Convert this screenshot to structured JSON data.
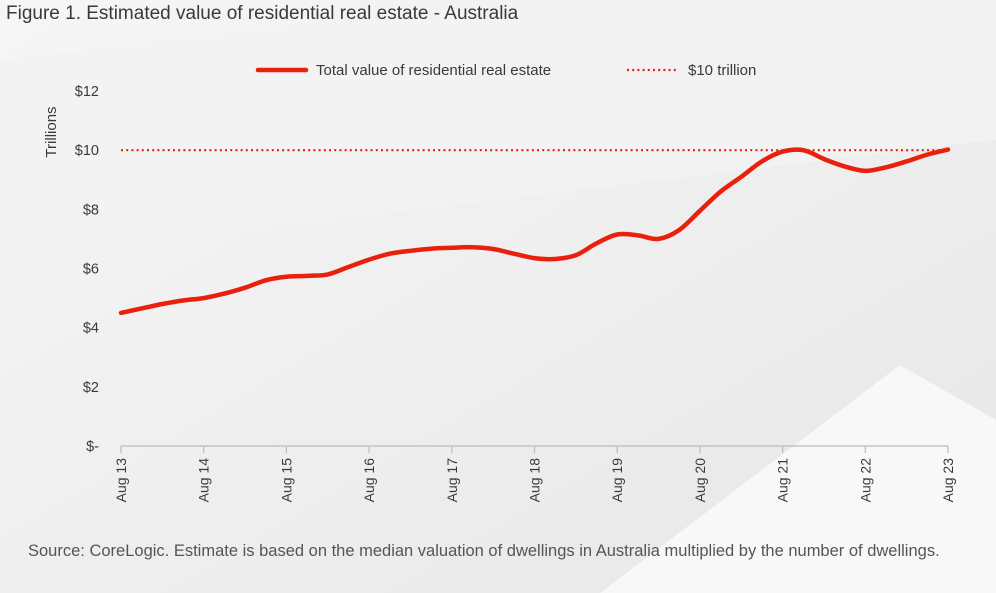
{
  "title": "Figure 1. Estimated value of residential real estate - Australia",
  "source": "Source: CoreLogic. Estimate is based on the median valuation of dwellings in Australia multiplied by the number of dwellings.",
  "colors": {
    "series": "#e8200c",
    "text": "#3a3a3a",
    "axis": "#bbbbbb"
  },
  "chart_data": {
    "type": "line",
    "ylabel": "Trillions",
    "ylim": [
      0,
      12
    ],
    "yticks": [
      {
        "value": 0,
        "label": "$-"
      },
      {
        "value": 2,
        "label": "$2"
      },
      {
        "value": 4,
        "label": "$4"
      },
      {
        "value": 6,
        "label": "$6"
      },
      {
        "value": 8,
        "label": "$8"
      },
      {
        "value": 10,
        "label": "$10"
      },
      {
        "value": 12,
        "label": "$12"
      }
    ],
    "xlim": [
      2013.583,
      2023.583
    ],
    "xticks": [
      {
        "value": 2013.583,
        "label": "Aug 13"
      },
      {
        "value": 2014.583,
        "label": "Aug 14"
      },
      {
        "value": 2015.583,
        "label": "Aug 15"
      },
      {
        "value": 2016.583,
        "label": "Aug 16"
      },
      {
        "value": 2017.583,
        "label": "Aug 17"
      },
      {
        "value": 2018.583,
        "label": "Aug 18"
      },
      {
        "value": 2019.583,
        "label": "Aug 19"
      },
      {
        "value": 2020.583,
        "label": "Aug 20"
      },
      {
        "value": 2021.583,
        "label": "Aug 21"
      },
      {
        "value": 2022.583,
        "label": "Aug 22"
      },
      {
        "value": 2023.583,
        "label": "Aug 23"
      }
    ],
    "legend_position": "top",
    "series": [
      {
        "name": "Total value of residential real estate",
        "style": "solid",
        "x": [
          2013.583,
          2013.833,
          2014.083,
          2014.333,
          2014.583,
          2014.833,
          2015.083,
          2015.333,
          2015.583,
          2015.833,
          2016.083,
          2016.333,
          2016.583,
          2016.833,
          2017.083,
          2017.333,
          2017.583,
          2017.833,
          2018.083,
          2018.333,
          2018.583,
          2018.833,
          2019.083,
          2019.333,
          2019.583,
          2019.833,
          2020.083,
          2020.333,
          2020.583,
          2020.833,
          2021.083,
          2021.333,
          2021.583,
          2021.833,
          2022.083,
          2022.333,
          2022.583,
          2022.833,
          2023.083,
          2023.333,
          2023.583
        ],
        "y": [
          4.5,
          4.65,
          4.8,
          4.92,
          5.0,
          5.15,
          5.35,
          5.6,
          5.72,
          5.75,
          5.8,
          6.05,
          6.3,
          6.5,
          6.6,
          6.67,
          6.7,
          6.72,
          6.66,
          6.5,
          6.35,
          6.32,
          6.45,
          6.85,
          7.15,
          7.12,
          7.0,
          7.3,
          7.95,
          8.6,
          9.1,
          9.62,
          9.95,
          10.0,
          9.7,
          9.45,
          9.3,
          9.42,
          9.62,
          9.85,
          10.02
        ]
      },
      {
        "name": "$10 trillion",
        "style": "dotted",
        "x": [
          2013.583,
          2023.583
        ],
        "y": [
          10,
          10
        ]
      }
    ]
  }
}
